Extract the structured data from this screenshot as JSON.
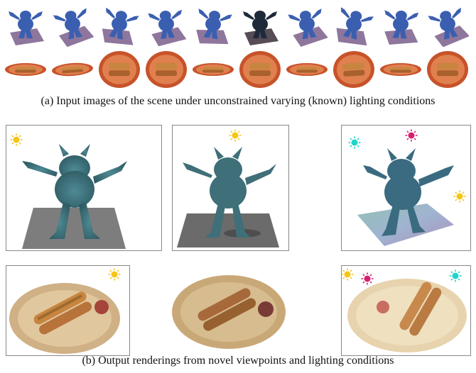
{
  "figure": {
    "caption_a": "(a) Input images of the scene under unconstrained varying (known) lighting conditions",
    "caption_b": "(b) Output renderings from novel viewpoints and lighting conditions"
  },
  "colors": {
    "sun_yellow": "#f5c518",
    "sun_cyan": "#1fd4c8",
    "sun_magenta": "#d61f6e",
    "monster_blue": "#3b5fb0",
    "monster_teal": "#3f6f78",
    "plate_orange": "#c7532a",
    "plate_beige": "#d6b58a",
    "hotdog_bun": "#c8853f"
  },
  "icons": [
    "sun-icon"
  ]
}
